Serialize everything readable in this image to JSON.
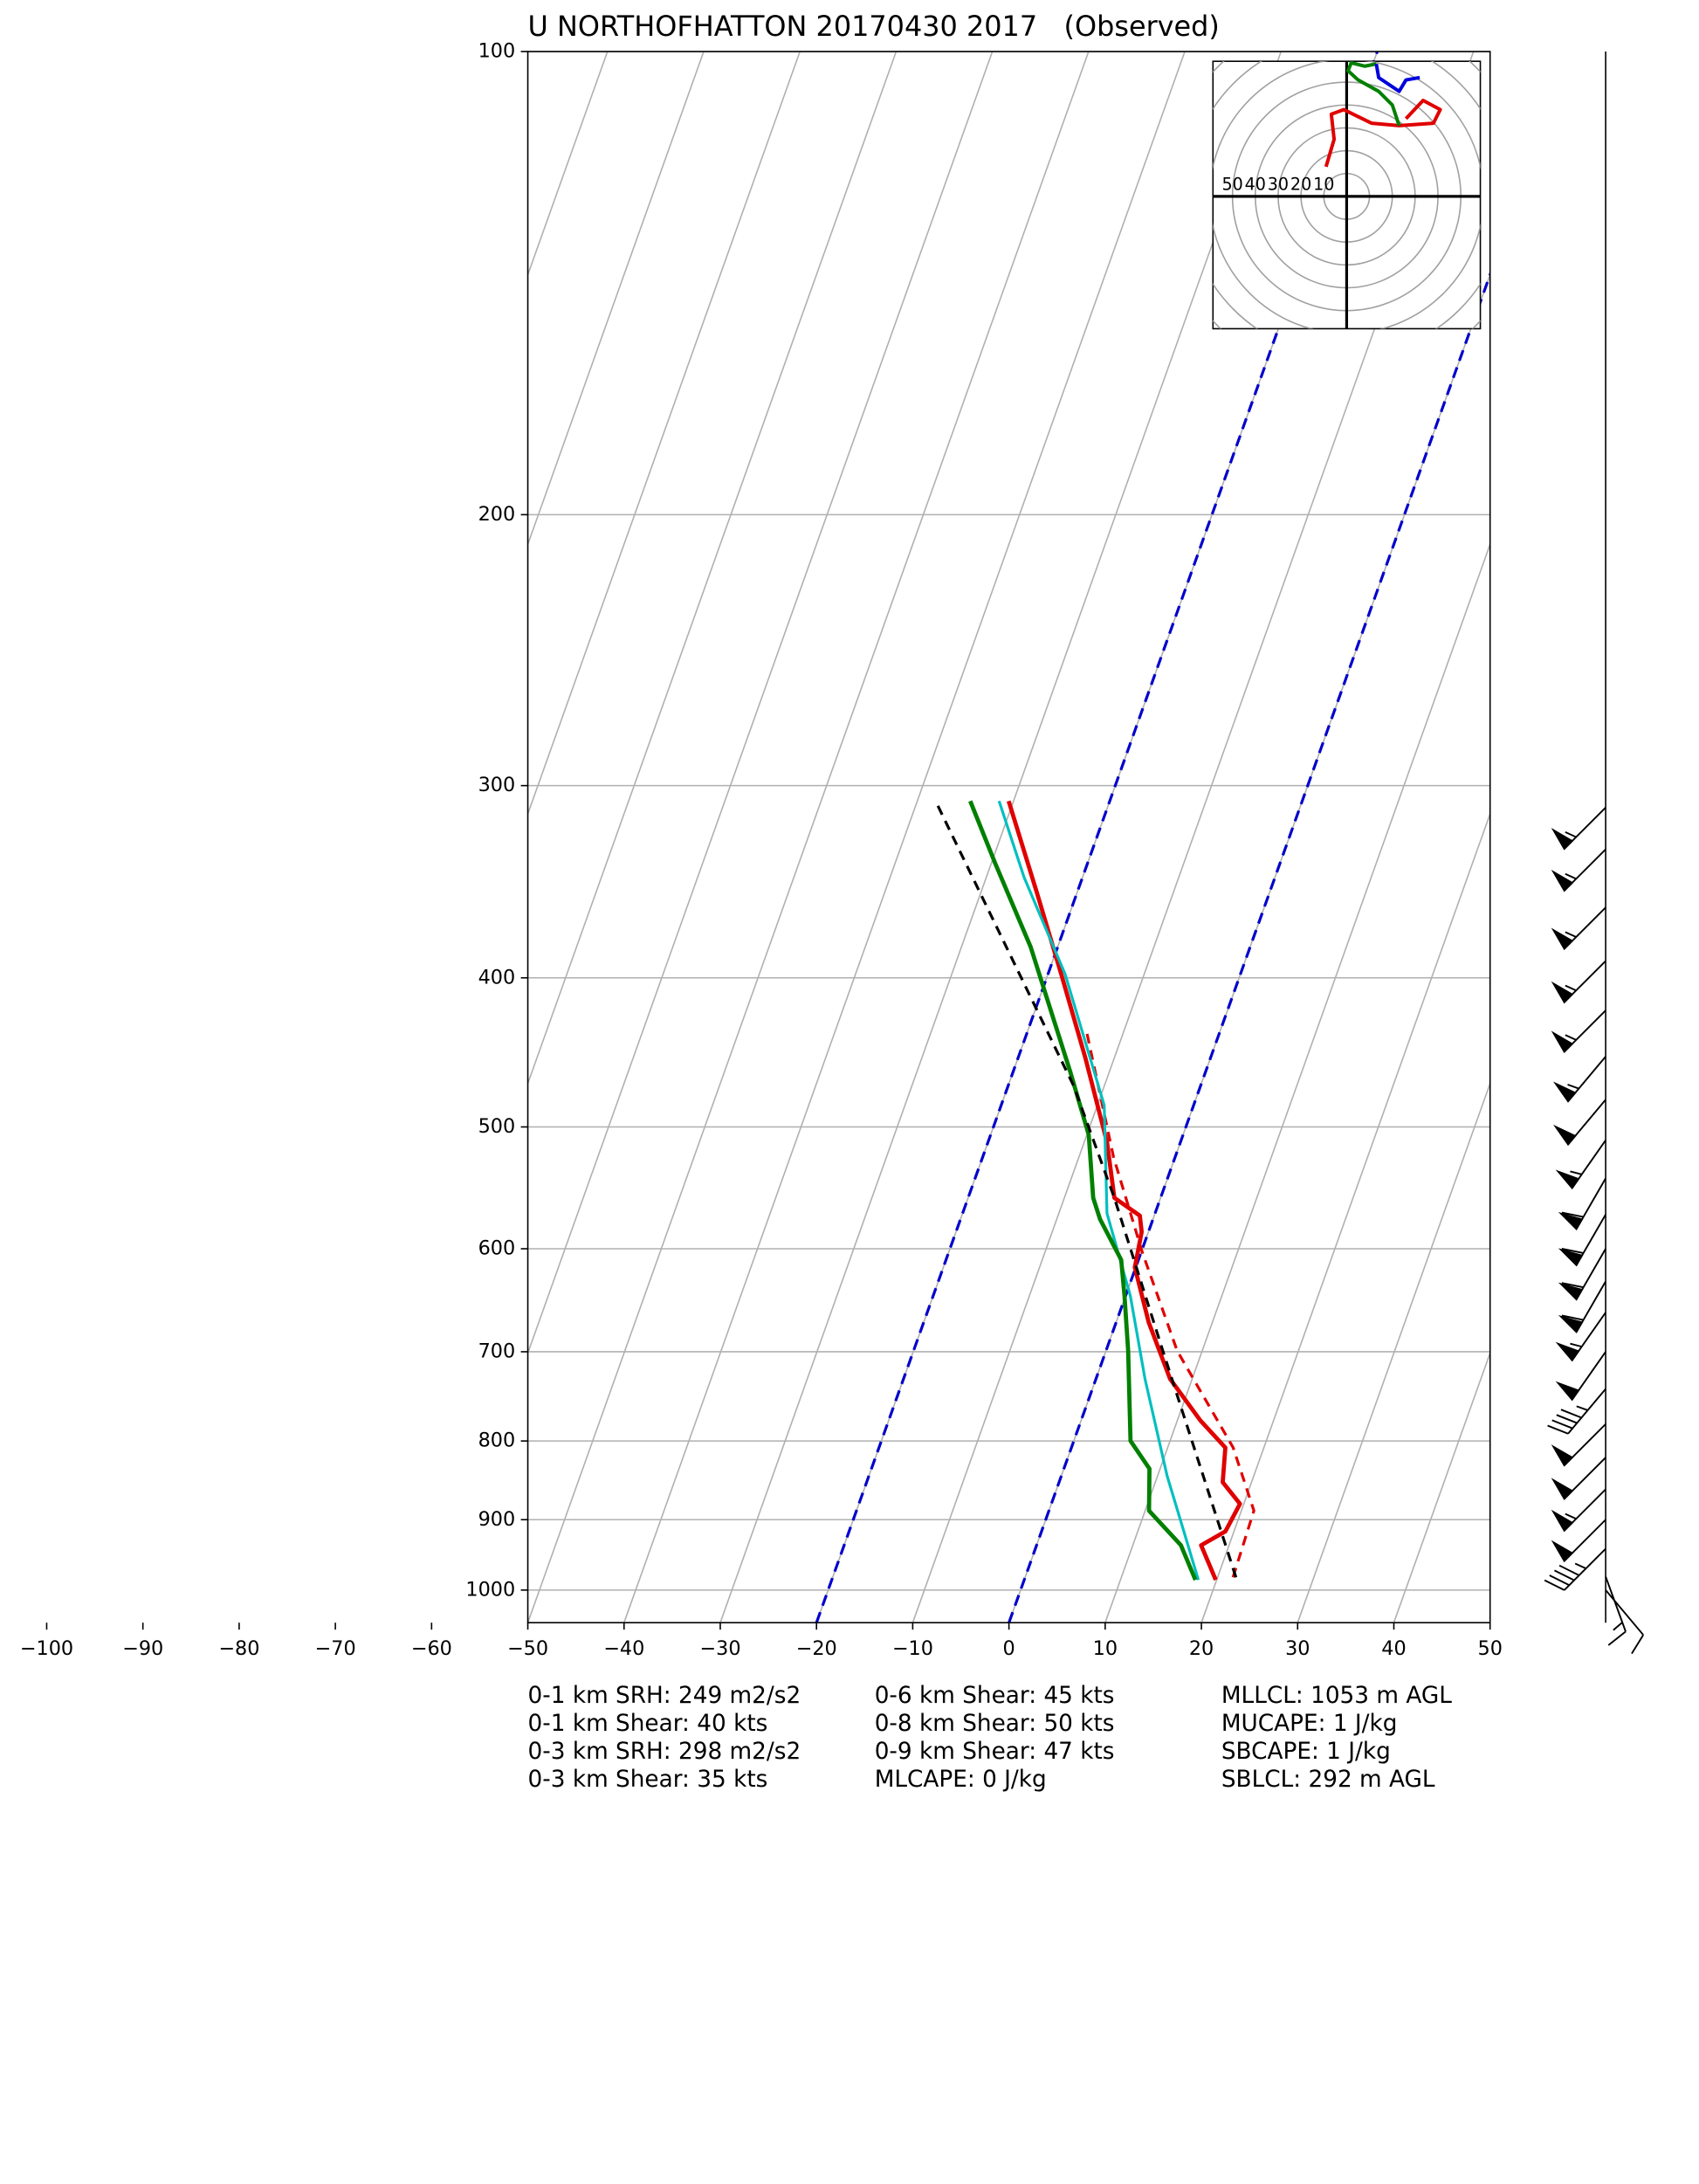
{
  "chart_data": {
    "type": "skewt",
    "title": "U NORTHOFHATTON 20170430 2017   (Observed)",
    "xlim": [
      -50,
      50
    ],
    "ylim": [
      1050,
      100
    ],
    "log_y": true,
    "grid": true,
    "xticks": [
      {
        "value": -100,
        "label": "−100"
      },
      {
        "value": -90,
        "label": "−90"
      },
      {
        "value": -80,
        "label": "−80"
      },
      {
        "value": -70,
        "label": "−70"
      },
      {
        "value": -60,
        "label": "−60"
      },
      {
        "value": -50,
        "label": "−50"
      },
      {
        "value": -40,
        "label": "−40"
      },
      {
        "value": -30,
        "label": "−30"
      },
      {
        "value": -20,
        "label": "−20"
      },
      {
        "value": -10,
        "label": "−10"
      },
      0,
      10,
      20,
      30,
      40,
      50
    ],
    "yticks": [
      100,
      200,
      300,
      400,
      500,
      600,
      700,
      800,
      900,
      1000
    ],
    "highlight_isotherms": {
      "values": [
        -20,
        0
      ],
      "color": "#0000cc"
    },
    "series": [
      {
        "color": "#e00000",
        "width": 3,
        "dashed": false,
        "pressure": [
          985,
          935,
          916,
          879,
          851,
          808,
          776,
          729,
          670,
          617,
          585,
          571,
          556,
          512,
          451,
          398,
          352,
          307
        ],
        "values": [
          19.9,
          17.1,
          19.1,
          19.6,
          17.0,
          16.0,
          12.4,
          7.7,
          3.4,
          -0.1,
          -0.7,
          -1.5,
          -4.8,
          -7.6,
          -13.0,
          -18.6,
          -24.2,
          -30.5
        ]
      },
      {
        "color": "#e00000",
        "width": 2,
        "dashed": true,
        "pressure": [
          981,
          888,
          808,
          699,
          603,
          523,
          432
        ],
        "values": [
          21.6,
          21.3,
          16.8,
          7.4,
          0.1,
          -6.4,
          -14.0
        ]
      },
      {
        "color": "#00bfbf",
        "width": 2,
        "dashed": false,
        "pressure": [
          985,
          916,
          843,
          729,
          644,
          569,
          484,
          398,
          344,
          307
        ],
        "values": [
          18.1,
          14.8,
          11.0,
          5.1,
          0.5,
          -5.0,
          -9.3,
          -18.2,
          -26.1,
          -31.5
        ]
      },
      {
        "color": "#008000",
        "width": 3,
        "dashed": false,
        "pressure": [
          985,
          935,
          888,
          834,
          800,
          699,
          644,
          610,
          574,
          556,
          506,
          460,
          382,
          337,
          307
        ],
        "values": [
          17.8,
          15.0,
          10.4,
          8.9,
          5.9,
          2.3,
          -0.1,
          -1.8,
          -5.5,
          -7.0,
          -9.8,
          -14.1,
          -22.8,
          -29.6,
          -34.5
        ]
      },
      {
        "color": "#000000",
        "width": 2,
        "dashed": true,
        "pressure": [
          981,
          699,
          556,
          470,
          307
        ],
        "values": [
          21.9,
          5.9,
          -4.8,
          -13.2,
          -38.1
        ]
      }
    ],
    "wind_barbs": {
      "pressure": [
        310,
        330,
        360,
        390,
        420,
        450,
        480,
        510,
        540,
        570,
        600,
        630,
        660,
        700,
        740,
        780,
        820,
        860,
        900,
        940,
        980,
        1000
      ],
      "speed": [
        55,
        55,
        55,
        55,
        55,
        55,
        50,
        55,
        60,
        60,
        60,
        60,
        55,
        50,
        45,
        50,
        50,
        55,
        50,
        45,
        15,
        10
      ],
      "direction": [
        225,
        225,
        225,
        225,
        225,
        220,
        220,
        215,
        210,
        210,
        210,
        210,
        215,
        215,
        220,
        225,
        225,
        225,
        225,
        225,
        160,
        140
      ]
    },
    "hodograph": {
      "labeled_rings": [
        10,
        20,
        30,
        40,
        50
      ],
      "unlabeled_rings": [
        60,
        70,
        80
      ],
      "series": [
        {
          "color": "#e00000",
          "u": [
            -9,
            -5.5,
            -6.7,
            -1.2,
            11,
            23,
            38,
            41,
            33.5,
            26
          ],
          "v": [
            13,
            25,
            36,
            38,
            32,
            31,
            32,
            38,
            42,
            34
          ]
        },
        {
          "color": "#008000",
          "u": [
            23,
            20,
            14,
            5,
            0.6,
            2,
            8,
            13
          ],
          "v": [
            31,
            40,
            46,
            51,
            55,
            58.5,
            57,
            58
          ]
        },
        {
          "color": "#0000dd",
          "u": [
            13,
            14,
            23,
            26,
            32
          ],
          "v": [
            58,
            52,
            46,
            51,
            52
          ]
        }
      ]
    },
    "indices": [
      [
        "0-1 km SRH: 249 m2/s2",
        "0-1 km Shear: 40 kts",
        "0-3 km SRH: 298 m2/s2",
        "0-3 km Shear: 35 kts"
      ],
      [
        "0-6 km Shear: 45 kts",
        "0-8 km Shear: 50 kts",
        "0-9 km Shear: 47 kts",
        "MLCAPE: 0 J/kg"
      ],
      [
        "MLLCL: 1053 m AGL",
        "MUCAPE: 1 J/kg",
        "SBCAPE: 1 J/kg",
        "SBLCL: 292 m AGL"
      ]
    ]
  }
}
